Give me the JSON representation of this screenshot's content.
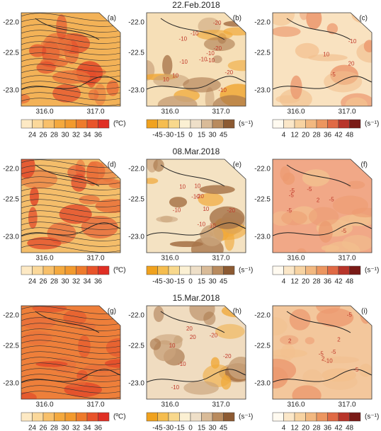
{
  "rows": [
    {
      "title": "22.Feb.2018",
      "panels": [
        {
          "label": "(a)",
          "contour_labels": []
        },
        {
          "label": "(b)",
          "contour_labels": [
            "-10",
            "-10",
            "-10",
            "-20",
            "-20",
            "-10",
            "10",
            "-10",
            "-10",
            "10",
            "-10",
            "-20"
          ]
        },
        {
          "label": "(c)",
          "contour_labels": [
            "-5",
            "10",
            "20",
            "-10"
          ]
        }
      ]
    },
    {
      "title": "08.Mar.2018",
      "panels": [
        {
          "label": "(d)",
          "contour_labels": []
        },
        {
          "label": "(e)",
          "contour_labels": [
            "-10",
            "-10",
            "-10",
            "-20",
            "10",
            "10",
            "10",
            "10",
            "-20"
          ]
        },
        {
          "label": "(f)",
          "contour_labels": [
            "2",
            "-5",
            "-5",
            "-5",
            "-5",
            "-5",
            "-5"
          ]
        }
      ]
    },
    {
      "title": "15.Mar.2018",
      "panels": [
        {
          "label": "(g)",
          "contour_labels": []
        },
        {
          "label": "(h)",
          "contour_labels": [
            "-10",
            "-10",
            "-20",
            "10",
            "-20",
            "20",
            "20"
          ]
        },
        {
          "label": "(i)",
          "contour_labels": [
            "-5",
            "-10",
            "2",
            "-5",
            "2",
            "-5",
            "2",
            "-5"
          ]
        }
      ]
    }
  ],
  "yticks": [
    "-22.0",
    "-22.5",
    "-23.0"
  ],
  "xticks": [
    "316.0",
    "317.0"
  ],
  "colorbars": [
    {
      "ticks": [
        24,
        26,
        28,
        30,
        32,
        34,
        36
      ],
      "unit": "(ºC)",
      "colors": [
        "#fde9c4",
        "#fbd89a",
        "#f8c06a",
        "#f4a93e",
        "#f29a2e",
        "#ee7b2c",
        "#e8542a",
        "#e02f24"
      ]
    },
    {
      "ticks": [
        -45,
        -30,
        -15,
        0,
        15,
        30,
        45
      ],
      "unit": "(s⁻¹)",
      "colors": [
        "#f0a21e",
        "#f5bd4f",
        "#f8d88c",
        "#fbf0d3",
        "#eedfc8",
        "#d9bb98",
        "#b98b5e",
        "#8c5a32"
      ]
    },
    {
      "ticks": [
        4,
        12,
        20,
        28,
        36,
        42,
        48
      ],
      "unit": "(s⁻¹)",
      "colors": [
        "#fffaf0",
        "#fbe7c8",
        "#f7d3a2",
        "#f2b880",
        "#ec9660",
        "#e06a45",
        "#b8352a",
        "#7a1a16"
      ]
    }
  ]
}
